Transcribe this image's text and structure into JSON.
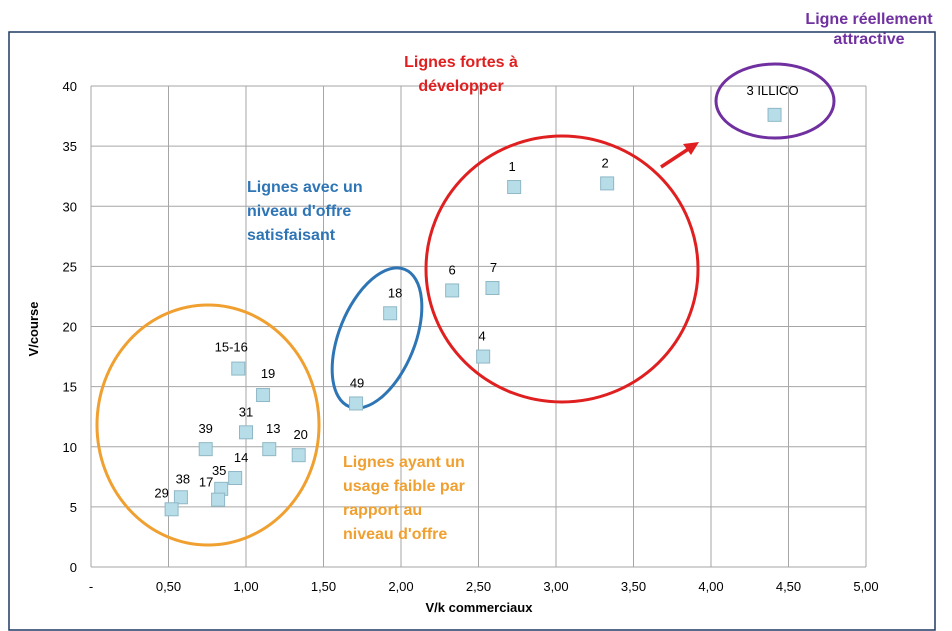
{
  "chart_data": {
    "type": "scatter",
    "xlabel": "V/k commerciaux",
    "ylabel": "V/course",
    "xlim": [
      0,
      5
    ],
    "ylim": [
      0,
      40
    ],
    "x_tick_labels": [
      "-",
      "0,50",
      "1,00",
      "1,50",
      "2,00",
      "2,50",
      "3,00",
      "3,50",
      "4,00",
      "4,50",
      "5,00"
    ],
    "y_tick_labels": [
      "0",
      "5",
      "10",
      "15",
      "20",
      "25",
      "30",
      "35",
      "40"
    ],
    "grid": true,
    "marker_color": "#b7dde8",
    "points": [
      {
        "label": "3 ILLICO",
        "x": 4.41,
        "y": 37.6
      },
      {
        "label": "1",
        "x": 2.73,
        "y": 31.6
      },
      {
        "label": "2",
        "x": 3.33,
        "y": 31.9
      },
      {
        "label": "6",
        "x": 2.33,
        "y": 23.0
      },
      {
        "label": "7",
        "x": 2.59,
        "y": 23.2
      },
      {
        "label": "4",
        "x": 2.53,
        "y": 17.5
      },
      {
        "label": "18",
        "x": 1.93,
        "y": 21.1
      },
      {
        "label": "49",
        "x": 1.71,
        "y": 13.6
      },
      {
        "label": "15-16",
        "x": 0.95,
        "y": 16.5
      },
      {
        "label": "19",
        "x": 1.11,
        "y": 14.3
      },
      {
        "label": "31",
        "x": 1.0,
        "y": 11.2
      },
      {
        "label": "13",
        "x": 1.15,
        "y": 9.8
      },
      {
        "label": "39",
        "x": 0.74,
        "y": 9.8
      },
      {
        "label": "20",
        "x": 1.34,
        "y": 9.3
      },
      {
        "label": "14",
        "x": 0.93,
        "y": 7.4
      },
      {
        "label": "35",
        "x": 0.84,
        "y": 6.5
      },
      {
        "label": "17",
        "x": 0.82,
        "y": 5.6
      },
      {
        "label": "38",
        "x": 0.58,
        "y": 5.8
      },
      {
        "label": "29",
        "x": 0.52,
        "y": 4.8
      }
    ],
    "annotations": [
      {
        "key": "attractive",
        "lines": [
          "Ligne réellement",
          "attractive"
        ],
        "color": "#7030a0"
      },
      {
        "key": "strong",
        "lines": [
          "Lignes fortes à",
          "développer"
        ],
        "color": "#e02020"
      },
      {
        "key": "satisfying",
        "lines": [
          "Lignes avec un",
          "niveau d'offre",
          "satisfaisant"
        ],
        "color": "#2e75b6"
      },
      {
        "key": "weak",
        "lines": [
          "Lignes ayant un",
          "usage faible par",
          "rapport au",
          "niveau d'offre"
        ],
        "color": "#f0a030"
      }
    ],
    "group_colors": {
      "purple": "#7030a0",
      "red": "#e02020",
      "blue": "#2e75b6",
      "orange": "#f0a030"
    }
  }
}
